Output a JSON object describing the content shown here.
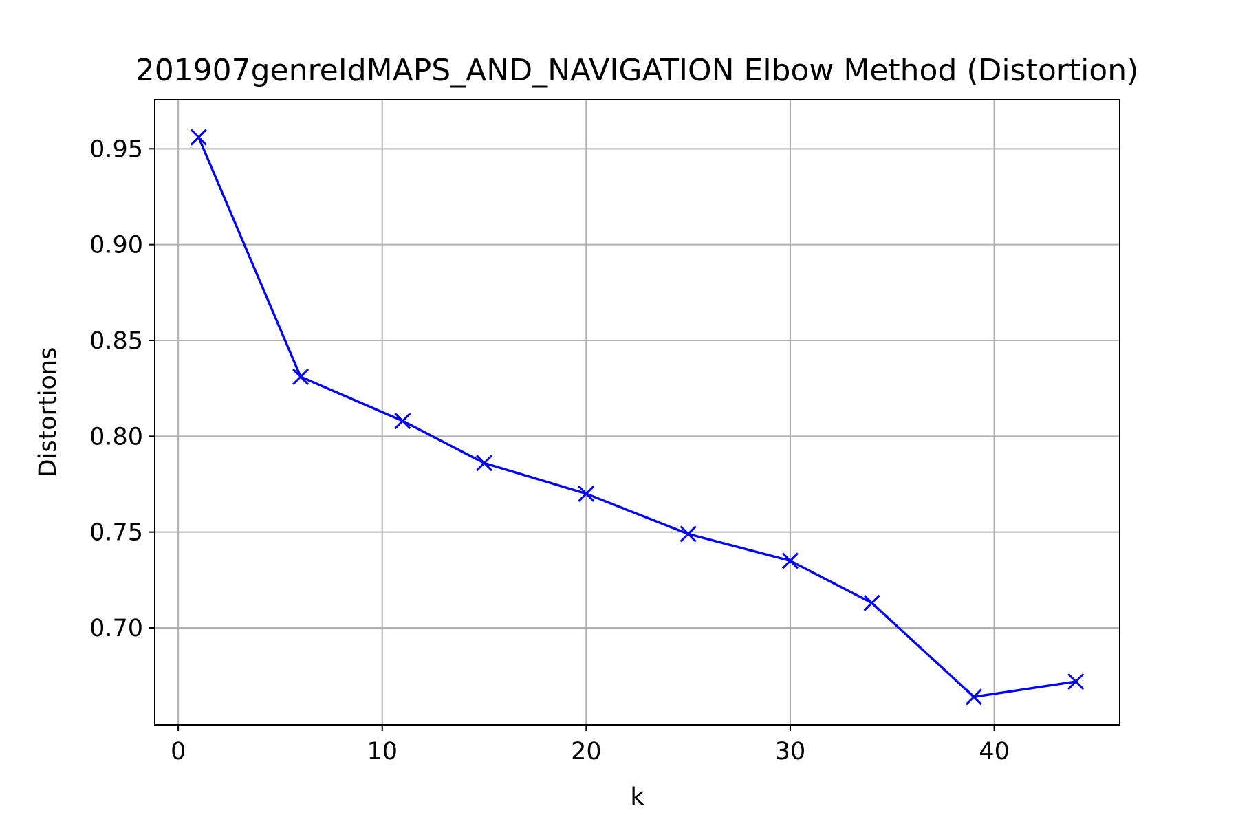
{
  "chart_data": {
    "type": "line",
    "title": "201907genreIdMAPS_AND_NAVIGATION Elbow Method (Distortion)",
    "xlabel": "k",
    "ylabel": "Distortions",
    "x": [
      1,
      6,
      11,
      15,
      20,
      25,
      30,
      34,
      39,
      44
    ],
    "series": [
      {
        "values": [
          0.956,
          0.831,
          0.808,
          0.786,
          0.77,
          0.749,
          0.735,
          0.713,
          0.664,
          0.672
        ],
        "color": "#0000ff",
        "marker": "x"
      }
    ],
    "xlim": [
      -1.15,
      46.15
    ],
    "ylim": [
      0.6494,
      0.9756
    ],
    "xticks": [
      0,
      10,
      20,
      30,
      40
    ],
    "xtick_labels": [
      "0",
      "10",
      "20",
      "30",
      "40"
    ],
    "yticks": [
      0.7,
      0.75,
      0.8,
      0.85,
      0.9,
      0.95
    ],
    "ytick_labels": [
      "0.70",
      "0.75",
      "0.80",
      "0.85",
      "0.90",
      "0.95"
    ],
    "grid": true,
    "grid_color": "#b0b0b0",
    "axes_color": "#000000"
  }
}
